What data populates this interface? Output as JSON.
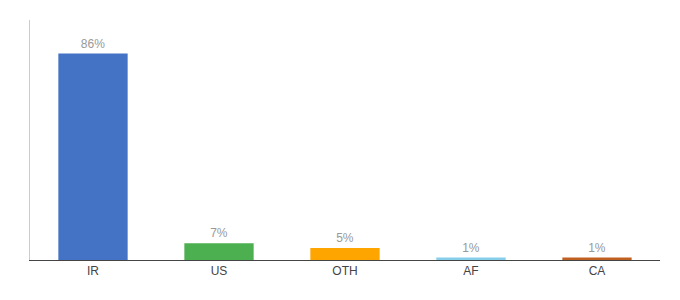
{
  "chart_data": {
    "type": "bar",
    "categories": [
      "IR",
      "US",
      "OTH",
      "AF",
      "CA"
    ],
    "values": [
      86,
      7,
      5,
      1,
      1
    ],
    "value_labels": [
      "86%",
      "7%",
      "5%",
      "1%",
      "1%"
    ],
    "data_labels": true,
    "colors": [
      "#4472c4",
      "#4caf50",
      "#ffa500",
      "#87ceeb",
      "#c06020"
    ],
    "ylim": [
      0,
      100
    ],
    "grid": false,
    "tick_labels": "x"
  }
}
